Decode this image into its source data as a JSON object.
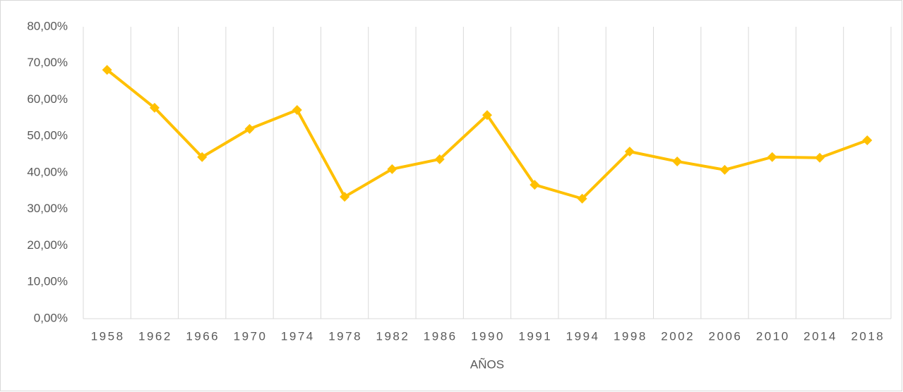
{
  "chart_data": {
    "type": "line",
    "x_label": "AÑOS",
    "categories": [
      "1958",
      "1962",
      "1966",
      "1970",
      "1974",
      "1978",
      "1982",
      "1986",
      "1990",
      "1991",
      "1994",
      "1998",
      "2002",
      "2006",
      "2010",
      "2014",
      "2018"
    ],
    "series": [
      {
        "color": "#ffc000",
        "values": [
          68.2,
          57.8,
          44.3,
          52.0,
          57.2,
          33.4,
          41.0,
          43.7,
          55.8,
          36.7,
          32.9,
          45.8,
          43.1,
          40.8,
          44.3,
          44.1,
          48.9
        ]
      }
    ],
    "ylim": [
      0,
      80
    ],
    "yticks": [
      {
        "value": 0,
        "label": "0,00%"
      },
      {
        "value": 10,
        "label": "10,00%"
      },
      {
        "value": 20,
        "label": "20,00%"
      },
      {
        "value": 30,
        "label": "30,00%"
      },
      {
        "value": 40,
        "label": "40,00%"
      },
      {
        "value": 50,
        "label": "50,00%"
      },
      {
        "value": 60,
        "label": "60,00%"
      },
      {
        "value": 70,
        "label": "70,00%"
      },
      {
        "value": 80,
        "label": "80,00%"
      }
    ],
    "grid": false,
    "category_separators": true
  }
}
